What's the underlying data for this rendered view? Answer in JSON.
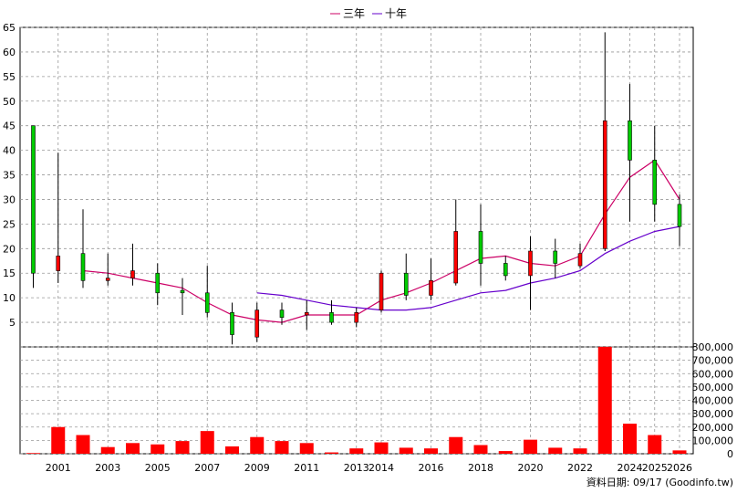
{
  "legend": [
    {
      "label": "三年",
      "color": "#cc0066"
    },
    {
      "label": "十年",
      "color": "#6600cc"
    }
  ],
  "footer": "資料日期: 09/17 (Goodinfo.tw)",
  "chart_data": [
    {
      "type": "candlestick",
      "ylim": [
        0,
        65
      ],
      "yticks": [
        5,
        10,
        15,
        20,
        25,
        30,
        35,
        40,
        45,
        50,
        55,
        60,
        65
      ],
      "colors": {
        "up": "#ff0000",
        "down": "#00cc00",
        "ma3": "#cc0066",
        "ma10": "#6600cc"
      },
      "candles": [
        {
          "x": 2000,
          "open": 15,
          "high": 45,
          "low": 12,
          "close": 45
        },
        {
          "x": 2001,
          "open": 18.5,
          "high": 39.5,
          "low": 13,
          "close": 15.5
        },
        {
          "x": 2002,
          "open": 13.5,
          "high": 28,
          "low": 12,
          "close": 19
        },
        {
          "x": 2003,
          "open": 14,
          "high": 19,
          "low": 12.5,
          "close": 13.5
        },
        {
          "x": 2004,
          "open": 15.5,
          "high": 21,
          "low": 12.5,
          "close": 14
        },
        {
          "x": 2005,
          "open": 11,
          "high": 17,
          "low": 8.5,
          "close": 15
        },
        {
          "x": 2006,
          "open": 11,
          "high": 14,
          "low": 6.5,
          "close": 11.5
        },
        {
          "x": 2007,
          "open": 7,
          "high": 16.5,
          "low": 6,
          "close": 11
        },
        {
          "x": 2008,
          "open": 2.5,
          "high": 9,
          "low": 0.5,
          "close": 7
        },
        {
          "x": 2009,
          "open": 7.5,
          "high": 9,
          "low": 1,
          "close": 2
        },
        {
          "x": 2010,
          "open": 6,
          "high": 9,
          "low": 4.5,
          "close": 7.5
        },
        {
          "x": 2011,
          "open": 7,
          "high": 9.5,
          "low": 3.5,
          "close": 6.5
        },
        {
          "x": 2012,
          "open": 5,
          "high": 9.5,
          "low": 4.5,
          "close": 7
        },
        {
          "x": 2013,
          "open": 7,
          "high": 8,
          "low": 4,
          "close": 5
        },
        {
          "x": 2014,
          "open": 15,
          "high": 15.5,
          "low": 7,
          "close": 7.5
        },
        {
          "x": 2015,
          "open": 10.5,
          "high": 19,
          "low": 9.5,
          "close": 15
        },
        {
          "x": 2016,
          "open": 13.5,
          "high": 18,
          "low": 9.5,
          "close": 10.5
        },
        {
          "x": 2017,
          "open": 23.5,
          "high": 30,
          "low": 12.5,
          "close": 13
        },
        {
          "x": 2018,
          "open": 17,
          "high": 29,
          "low": 12.5,
          "close": 23.5
        },
        {
          "x": 2019,
          "open": 14.5,
          "high": 18.5,
          "low": 13.5,
          "close": 17
        },
        {
          "x": 2020,
          "open": 19.5,
          "high": 22.5,
          "low": 7.5,
          "close": 14.5
        },
        {
          "x": 2021,
          "open": 17,
          "high": 22,
          "low": 14,
          "close": 19.5
        },
        {
          "x": 2022,
          "open": 19,
          "high": 21,
          "low": 16,
          "close": 16.5
        },
        {
          "x": 2023,
          "open": 46,
          "high": 64,
          "low": 19.5,
          "close": 20
        },
        {
          "x": 2024,
          "open": 38,
          "high": 53.5,
          "low": 25.5,
          "close": 46
        },
        {
          "x": 2025,
          "open": 29,
          "high": 45,
          "low": 25.5,
          "close": 38
        },
        {
          "x": 2026,
          "open": 24.5,
          "high": 31,
          "low": 20.5,
          "close": 29
        }
      ],
      "series": [
        {
          "name": "三年",
          "points": [
            [
              2002,
              15.5
            ],
            [
              2003,
              15
            ],
            [
              2004,
              14
            ],
            [
              2005,
              13
            ],
            [
              2006,
              12
            ],
            [
              2007,
              9
            ],
            [
              2008,
              6.5
            ],
            [
              2009,
              5.5
            ],
            [
              2010,
              5
            ],
            [
              2011,
              6.5
            ],
            [
              2012,
              6.5
            ],
            [
              2013,
              6.5
            ],
            [
              2014,
              9.5
            ],
            [
              2015,
              11
            ],
            [
              2016,
              13
            ],
            [
              2017,
              15.5
            ],
            [
              2018,
              18
            ],
            [
              2019,
              18.5
            ],
            [
              2020,
              17
            ],
            [
              2021,
              16.5
            ],
            [
              2022,
              18.5
            ],
            [
              2023,
              27
            ],
            [
              2024,
              34.5
            ],
            [
              2025,
              38
            ],
            [
              2026,
              30
            ]
          ]
        },
        {
          "name": "十年",
          "points": [
            [
              2009,
              11
            ],
            [
              2010,
              10.5
            ],
            [
              2011,
              9.5
            ],
            [
              2012,
              8.5
            ],
            [
              2013,
              8
            ],
            [
              2014,
              7.5
            ],
            [
              2015,
              7.5
            ],
            [
              2016,
              8
            ],
            [
              2017,
              9.5
            ],
            [
              2018,
              11
            ],
            [
              2019,
              11.5
            ],
            [
              2020,
              13
            ],
            [
              2021,
              14
            ],
            [
              2022,
              15.5
            ],
            [
              2023,
              19
            ],
            [
              2024,
              21.5
            ],
            [
              2025,
              23.5
            ],
            [
              2026,
              24.5
            ]
          ]
        }
      ]
    },
    {
      "type": "bar",
      "ylim": [
        0,
        800000
      ],
      "yticks": [
        "0",
        "100,000",
        "200,000",
        "300,000",
        "400,000",
        "500,000",
        "600,000",
        "700,000",
        "800,000"
      ],
      "color": "#ff0000",
      "x": [
        2000,
        2001,
        2002,
        2003,
        2004,
        2005,
        2006,
        2007,
        2008,
        2009,
        2010,
        2011,
        2012,
        2013,
        2014,
        2015,
        2016,
        2017,
        2018,
        2019,
        2020,
        2021,
        2022,
        2023,
        2024,
        2025,
        2026
      ],
      "values": [
        5000,
        200000,
        140000,
        50000,
        80000,
        70000,
        95000,
        170000,
        55000,
        125000,
        95000,
        80000,
        10000,
        40000,
        85000,
        45000,
        40000,
        125000,
        65000,
        20000,
        105000,
        45000,
        40000,
        810000,
        225000,
        140000,
        25000
      ],
      "xtick_labels": [
        "2001",
        "2003",
        "2005",
        "2007",
        "2009",
        "2011",
        "2013",
        "2014",
        "2016",
        "2018",
        "2020",
        "2022",
        "2024",
        "2025",
        "2026"
      ],
      "xtick_positions": [
        2001,
        2003,
        2005,
        2007,
        2009,
        2011,
        2013,
        2014,
        2016,
        2018,
        2020,
        2022,
        2024,
        2025,
        2026
      ]
    }
  ]
}
